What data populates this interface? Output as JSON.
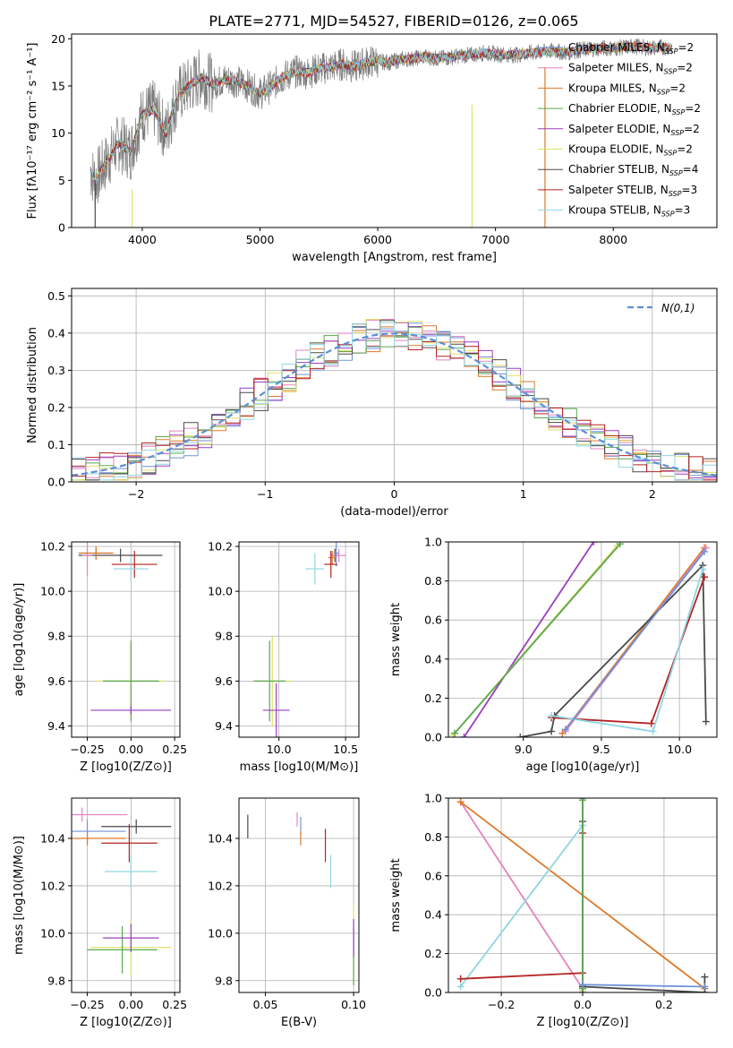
{
  "figure_title": "PLATE=2771, MJD=54527, FIBERID=0126, z=0.065",
  "model_colors": [
    "#6f93d9",
    "#e383c0",
    "#dd7a2a",
    "#5aa84e",
    "#9a3fbf",
    "#dfe06a",
    "#4a4a4a",
    "#b52323",
    "#8ed6e0"
  ],
  "chart_data": [
    {
      "id": "spectrum",
      "type": "line",
      "xlabel": "wavelength [Angstrom, rest frame]",
      "ylabel": "Flux [fλ10⁻¹⁷ erg cm⁻² s⁻¹ A⁻¹]",
      "xlim": [
        3400,
        8880
      ],
      "ylim": [
        0,
        20.5
      ],
      "xticks": [
        4000,
        5000,
        6000,
        7000,
        8000
      ],
      "yticks": [
        0,
        5,
        10,
        15,
        20
      ],
      "grid": false,
      "data_series": {
        "name": "data",
        "color": "#7a7a7a",
        "x": [
          3560,
          3600,
          3700,
          3800,
          3900,
          4000,
          4100,
          4200,
          4300,
          4400,
          4500,
          4600,
          4700,
          4800,
          4900,
          5000,
          5100,
          5200,
          5300,
          5400,
          5500,
          5600,
          5700,
          5800,
          5900,
          6000,
          6100,
          6200,
          6300,
          6400,
          6500,
          6600,
          6700,
          6800,
          6900,
          7000,
          7100,
          7200,
          7300,
          7400,
          7500,
          7600,
          7700,
          7800,
          7900,
          8000,
          8100,
          8200,
          8300,
          8400,
          8500
        ],
        "y": [
          6,
          5,
          7,
          9,
          8,
          12,
          12.5,
          10,
          14,
          15,
          16,
          15.2,
          15.7,
          15.5,
          15,
          14.2,
          15,
          16,
          16.5,
          16.4,
          16.8,
          17,
          17.3,
          17,
          17.5,
          17.6,
          17.5,
          17.8,
          17.9,
          18.1,
          17.9,
          18,
          18.2,
          18.3,
          18.5,
          18.4,
          18.3,
          18.3,
          18.5,
          18.6,
          18.7,
          18.5,
          18.8,
          18.9,
          19,
          19,
          19.1,
          19.2,
          19,
          19.1,
          19.1
        ]
      },
      "legend": [
        "Chabrier MILES, N_SSP=2",
        "Salpeter MILES, N_SSP=2",
        "Kroupa MILES, N_SSP=2",
        "Chabrier ELODIE, N_SSP=2",
        "Salpeter ELODIE, N_SSP=2",
        "Kroupa ELODIE, N_SSP=2",
        "Chabrier STELIB, N_SSP=4",
        "Salpeter STELIB, N_SSP=3",
        "Kroupa STELIB, N_SSP=3"
      ]
    },
    {
      "id": "residuals",
      "type": "line",
      "xlabel": "(data-model)/error",
      "ylabel": "Normed distribution",
      "xlim": [
        -2.5,
        2.5
      ],
      "ylim": [
        0,
        0.52
      ],
      "xticks": [
        -2,
        -1,
        0,
        1,
        2
      ],
      "yticks": [
        0.0,
        0.1,
        0.2,
        0.3,
        0.4,
        0.5
      ],
      "grid": true,
      "bins": 46,
      "gaussian_label": "N(0,1)",
      "gaussian_color": "#5a8fd8",
      "legend_position": "upper right"
    },
    {
      "id": "age-vs-Z",
      "type": "scatter",
      "xlabel": "Z [log10(Z/Z⊙)]",
      "ylabel": "age [log10(age/yr)]",
      "xlim": [
        -0.34,
        0.28
      ],
      "ylim": [
        9.35,
        10.22
      ],
      "xticks": [
        -0.25,
        0.0,
        0.25
      ],
      "xticklabels": [
        "−0.25",
        "0.00",
        "0.25"
      ],
      "yticks": [
        9.4,
        9.6,
        9.8,
        10.0,
        10.2
      ],
      "grid": true,
      "points": [
        {
          "x": -0.06,
          "y": 10.16,
          "xerr": 0.24,
          "yerr": 0.03,
          "c": 6
        },
        {
          "x": -0.25,
          "y": 10.16,
          "xerr": 0.03,
          "yerr": 0.09,
          "c": 1
        },
        {
          "x": -0.2,
          "y": 10.17,
          "xerr": 0.09,
          "yerr": 0.03,
          "c": 0
        },
        {
          "x": -0.2,
          "y": 10.17,
          "xerr": 0.1,
          "yerr": 0.03,
          "c": 2
        },
        {
          "x": 0.02,
          "y": 10.12,
          "xerr": 0.13,
          "yerr": 0.06,
          "c": 7
        },
        {
          "x": 0.0,
          "y": 10.1,
          "xerr": 0.1,
          "yerr": 0.05,
          "c": 8
        },
        {
          "x": 0.0,
          "y": 9.6,
          "xerr": 0.2,
          "yerr": 0.16,
          "c": 5
        },
        {
          "x": 0.0,
          "y": 9.6,
          "xerr": 0.16,
          "yerr": 0.18,
          "c": 3
        },
        {
          "x": 0.0,
          "y": 9.47,
          "xerr": 0.23,
          "yerr": 0.02,
          "c": 4
        }
      ]
    },
    {
      "id": "age-vs-mass",
      "type": "scatter",
      "xlabel": "mass [log10(M/M⊙)]",
      "ylabel": "",
      "xlim": [
        9.7,
        10.6
      ],
      "ylim": [
        9.35,
        10.22
      ],
      "xticks": [
        10.0,
        10.5
      ],
      "xticklabels": [
        "10.0",
        "10.5"
      ],
      "yticks": [
        9.4,
        9.6,
        9.8,
        10.0,
        10.2
      ],
      "grid": true,
      "points": [
        {
          "x": 10.42,
          "y": 10.16,
          "xerr": 0.03,
          "yerr": 0.03,
          "c": 6
        },
        {
          "x": 10.45,
          "y": 10.16,
          "xerr": 0.05,
          "yerr": 0.03,
          "c": 1
        },
        {
          "x": 10.43,
          "y": 10.17,
          "xerr": 0.02,
          "yerr": 0.06,
          "c": 0
        },
        {
          "x": 10.4,
          "y": 10.15,
          "xerr": 0.03,
          "yerr": 0.03,
          "c": 2
        },
        {
          "x": 10.39,
          "y": 10.12,
          "xerr": 0.05,
          "yerr": 0.06,
          "c": 7
        },
        {
          "x": 10.27,
          "y": 10.1,
          "xerr": 0.07,
          "yerr": 0.07,
          "c": 8
        },
        {
          "x": 9.95,
          "y": 9.6,
          "xerr": 0.14,
          "yerr": 0.2,
          "c": 5
        },
        {
          "x": 9.93,
          "y": 9.6,
          "xerr": 0.12,
          "yerr": 0.18,
          "c": 3
        },
        {
          "x": 9.98,
          "y": 9.47,
          "xerr": 0.1,
          "yerr": 0.12,
          "c": 4
        }
      ]
    },
    {
      "id": "weight-vs-age",
      "type": "line",
      "xlabel": "age  [log10(age/yr)]",
      "ylabel": "mass weight",
      "xlim": [
        8.52,
        10.24
      ],
      "ylim": [
        0,
        1.0
      ],
      "xticks": [
        9.0,
        9.5,
        10.0
      ],
      "xticklabels": [
        "9.0",
        "9.5",
        "10.0"
      ],
      "yticks": [
        0.0,
        0.2,
        0.4,
        0.6,
        0.8,
        1.0
      ],
      "grid": true,
      "series": [
        {
          "c": 4,
          "x": [
            8.62,
            9.45
          ],
          "y": [
            0.0,
            1.0
          ]
        },
        {
          "c": 5,
          "x": [
            8.55,
            9.6
          ],
          "y": [
            0.01,
            0.98
          ]
        },
        {
          "c": 3,
          "x": [
            8.56,
            9.62
          ],
          "y": [
            0.02,
            0.99
          ]
        },
        {
          "c": 2,
          "x": [
            9.25,
            10.16
          ],
          "y": [
            0.02,
            0.97
          ]
        },
        {
          "c": 1,
          "x": [
            9.27,
            10.17
          ],
          "y": [
            0.03,
            0.97
          ]
        },
        {
          "c": 6,
          "x": [
            8.98,
            9.18,
            9.2,
            10.15,
            10.17
          ],
          "y": [
            0.0,
            0.03,
            0.11,
            0.88,
            0.08
          ]
        },
        {
          "c": 7,
          "x": [
            9.18,
            9.82,
            10.16
          ],
          "y": [
            0.1,
            0.07,
            0.82
          ]
        },
        {
          "c": 8,
          "x": [
            9.18,
            9.83,
            10.15
          ],
          "y": [
            0.11,
            0.03,
            0.86
          ]
        },
        {
          "c": 0,
          "x": [
            9.27,
            10.16
          ],
          "y": [
            0.04,
            0.95
          ]
        }
      ]
    },
    {
      "id": "mass-vs-Z",
      "type": "scatter",
      "xlabel": "Z [log10(Z/Z⊙)]",
      "ylabel": "mass [log10(M/M⊙)]",
      "xlim": [
        -0.34,
        0.28
      ],
      "ylim": [
        9.75,
        10.57
      ],
      "xticks": [
        -0.25,
        0.0,
        0.25
      ],
      "xticklabels": [
        "−0.25",
        "0.00",
        "0.25"
      ],
      "yticks": [
        9.8,
        10.0,
        10.2,
        10.4
      ],
      "grid": true,
      "points": [
        {
          "x": 0.03,
          "y": 10.45,
          "xerr": 0.2,
          "yerr": 0.03,
          "c": 6
        },
        {
          "x": -0.28,
          "y": 10.5,
          "xerr": 0.26,
          "yerr": 0.03,
          "c": 1
        },
        {
          "x": -0.25,
          "y": 10.43,
          "xerr": 0.22,
          "yerr": 0.05,
          "c": 0
        },
        {
          "x": -0.25,
          "y": 10.4,
          "xerr": 0.22,
          "yerr": 0.03,
          "c": 2
        },
        {
          "x": -0.01,
          "y": 10.38,
          "xerr": 0.16,
          "yerr": 0.08,
          "c": 7
        },
        {
          "x": 0.0,
          "y": 10.26,
          "xerr": 0.15,
          "yerr": 0.07,
          "c": 8
        },
        {
          "x": 0.0,
          "y": 9.94,
          "xerr": 0.23,
          "yerr": 0.12,
          "c": 5
        },
        {
          "x": -0.05,
          "y": 9.93,
          "xerr": 0.2,
          "yerr": 0.1,
          "c": 3
        },
        {
          "x": 0.0,
          "y": 9.98,
          "xerr": 0.16,
          "yerr": 0.06,
          "c": 4
        }
      ]
    },
    {
      "id": "mass-vs-EBV",
      "type": "scatter",
      "xlabel": "E(B-V)",
      "ylabel": "",
      "xlim": [
        0.035,
        0.103
      ],
      "ylim": [
        9.75,
        10.57
      ],
      "xticks": [
        0.05,
        0.1
      ],
      "xticklabels": [
        "0.05",
        "0.10"
      ],
      "yticks": [
        9.8,
        10.0,
        10.2,
        10.4
      ],
      "grid": true,
      "points": [
        {
          "x": 0.04,
          "y": 10.45,
          "xerr": 0.0,
          "yerr": 0.05,
          "c": 6
        },
        {
          "x": 0.068,
          "y": 10.48,
          "xerr": 0.0,
          "yerr": 0.03,
          "c": 1
        },
        {
          "x": 0.07,
          "y": 10.45,
          "xerr": 0.0,
          "yerr": 0.04,
          "c": 0
        },
        {
          "x": 0.07,
          "y": 10.4,
          "xerr": 0.0,
          "yerr": 0.03,
          "c": 2
        },
        {
          "x": 0.084,
          "y": 10.37,
          "xerr": 0.0,
          "yerr": 0.07,
          "c": 7
        },
        {
          "x": 0.087,
          "y": 10.26,
          "xerr": 0.0,
          "yerr": 0.07,
          "c": 8
        },
        {
          "x": 0.1,
          "y": 9.95,
          "xerr": 0.0,
          "yerr": 0.17,
          "c": 5
        },
        {
          "x": 0.1,
          "y": 9.9,
          "xerr": 0.0,
          "yerr": 0.12,
          "c": 3
        },
        {
          "x": 0.1,
          "y": 9.98,
          "xerr": 0.0,
          "yerr": 0.08,
          "c": 4
        }
      ]
    },
    {
      "id": "weight-vs-Z",
      "type": "line",
      "xlabel": "Z [log10(Z/Z⊙)]",
      "ylabel": "mass weight",
      "xlim": [
        -0.33,
        0.33
      ],
      "ylim": [
        0,
        1.0
      ],
      "xticks": [
        -0.2,
        0.0,
        0.2
      ],
      "xticklabels": [
        "−0.2",
        "0.0",
        "0.2"
      ],
      "yticks": [
        0.0,
        0.2,
        0.4,
        0.6,
        0.8,
        1.0
      ],
      "grid": true,
      "series": [
        {
          "c": 1,
          "x": [
            -0.3,
            0.0
          ],
          "y": [
            0.98,
            0.02
          ]
        },
        {
          "c": 2,
          "x": [
            -0.3,
            0.3
          ],
          "y": [
            0.98,
            0.02
          ]
        },
        {
          "c": 8,
          "x": [
            -0.3,
            0.0,
            0.0
          ],
          "y": [
            0.03,
            0.86,
            0.1
          ]
        },
        {
          "c": 7,
          "x": [
            -0.3,
            0.0,
            0.0
          ],
          "y": [
            0.07,
            0.1,
            0.82
          ]
        },
        {
          "c": 6,
          "x": [
            0.0,
            0.0,
            0.0,
            0.3,
            0.3
          ],
          "y": [
            0.88,
            0.03,
            0.03,
            0.0,
            0.08
          ]
        },
        {
          "c": 5,
          "x": [
            0.0,
            0.0
          ],
          "y": [
            0.01,
            0.99
          ]
        },
        {
          "c": 4,
          "x": [
            0.0,
            0.0
          ],
          "y": [
            0.0,
            1.0
          ]
        },
        {
          "c": 3,
          "x": [
            0.0,
            0.0
          ],
          "y": [
            0.02,
            0.99
          ]
        },
        {
          "c": 0,
          "x": [
            0.0,
            0.3
          ],
          "y": [
            0.04,
            0.03
          ]
        }
      ]
    }
  ]
}
